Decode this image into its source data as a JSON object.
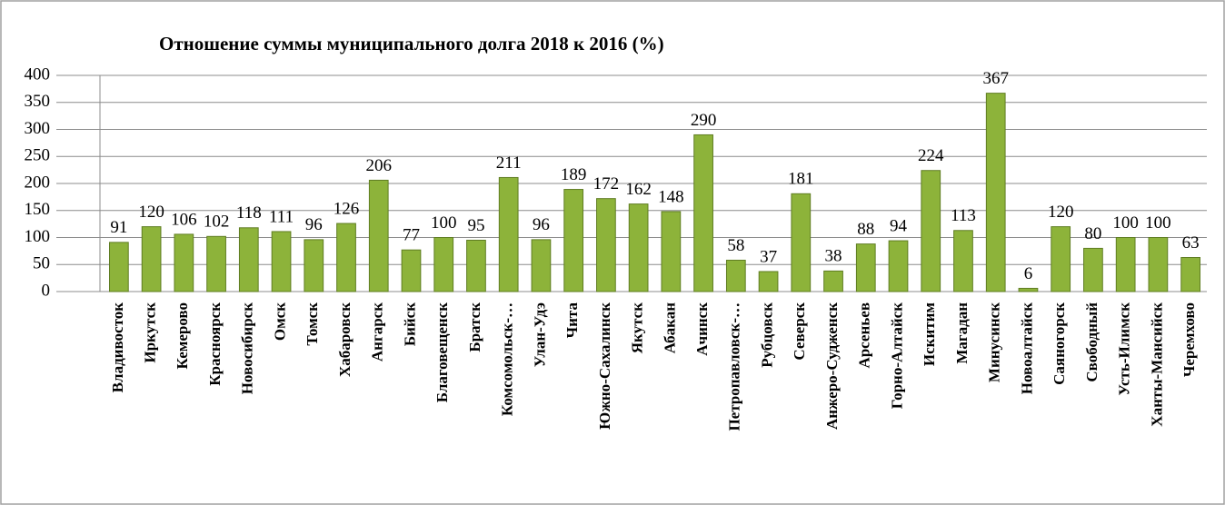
{
  "chart_data": {
    "type": "bar",
    "title": "Отношение суммы муниципального долга 2018 к 2016 (%)",
    "categories": [
      "Владивосток",
      "Иркутск",
      "Кемерово",
      "Красноярск",
      "Новосибирск",
      "Омск",
      "Томск",
      "Хабаровск",
      "Ангарск",
      "Бийск",
      "Благовещенск",
      "Братск",
      "Комсомольск-…",
      "Улан-Удэ",
      "Чита",
      "Южно-Сахалинск",
      "Якутск",
      "Абакан",
      "Ачинск",
      "Петропавловск-…",
      "Рубцовск",
      "Северск",
      "Анжеро-Судженск",
      "Арсеньев",
      "Горно-Алтайск",
      "Искитим",
      "Магадан",
      "Минусинск",
      "Новоалтайск",
      "Саяногорск",
      "Свободный",
      "Усть-Илимск",
      "Ханты-Мансийск",
      "Черемхово"
    ],
    "values": [
      91,
      120,
      106,
      102,
      118,
      111,
      96,
      126,
      206,
      77,
      100,
      95,
      211,
      96,
      189,
      172,
      162,
      148,
      290,
      58,
      37,
      181,
      38,
      88,
      94,
      224,
      113,
      367,
      6,
      120,
      80,
      100,
      100,
      63
    ],
    "color": "#8db33a",
    "ylim": [
      0,
      400
    ],
    "yticks": [
      0,
      50,
      100,
      150,
      200,
      250,
      300,
      350,
      400
    ],
    "grid": true
  }
}
